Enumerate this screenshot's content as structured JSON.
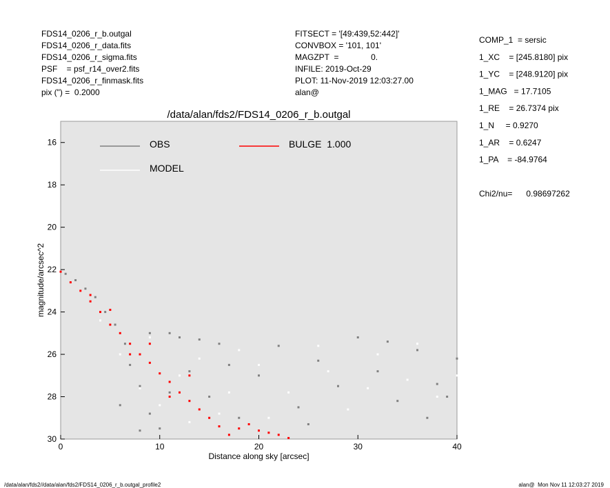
{
  "header": {
    "left": [
      "FDS14_0206_r_b.outgal",
      "FDS14_0206_r_data.fits",
      "FDS14_0206_r_sigma.fits",
      "PSF    = psf_r14_over2.fits",
      "FDS14_0206_r_finmask.fits",
      "pix (\") =  0.2000"
    ],
    "middle": [
      "FITSECT = '[49:439,52:442]'",
      "CONVBOX = '101, 101'",
      "MAGZPT  =              0.",
      "INFILE: 2019-Oct-29",
      "PLOT: 11-Nov-2019 12:03:27.00",
      "alan@"
    ],
    "right": [
      "COMP_1  = sersic",
      "1_XC    = [245.8180] pix",
      "1_YC    = [248.9120] pix",
      "1_MAG   = 17.7105",
      "1_RE    = 26.7374 pix",
      "1_N     = 0.9270",
      "1_AR    = 0.6247",
      "1_PA    = -84.9764",
      "Chi2/nu=      0.98697262"
    ]
  },
  "footer": {
    "left": "/data/alan/fds2//data/alan/fds2/FDS14_0206_r_b.outgal_profile2",
    "right": "alan@  Mon Nov 11 12:03:27 2019"
  },
  "chart_data": {
    "type": "scatter",
    "title": "/data/alan/fds2/FDS14_0206_r_b.outgal",
    "x_label": "Distance along sky [arcsec]",
    "y_label": "magnitude/arcsec^2",
    "xlim": [
      0,
      40
    ],
    "xticks": [
      0,
      10,
      20,
      30,
      40
    ],
    "ylim": [
      30,
      15
    ],
    "yticks": [
      16,
      18,
      20,
      22,
      24,
      26,
      28,
      30
    ],
    "background": "#e5e5e5",
    "series": [
      {
        "name": "OBS",
        "color": "#808080",
        "x": [
          0.5,
          1.5,
          2.5,
          3.5,
          4.5,
          5.5,
          6.5,
          7,
          8,
          9,
          10,
          11,
          12,
          13,
          14,
          15,
          16,
          17,
          18,
          20,
          22,
          24,
          26,
          28,
          30,
          32,
          34,
          36,
          38,
          40,
          6,
          8,
          9,
          11,
          25,
          33,
          37,
          39
        ],
        "values": [
          22.2,
          22.5,
          22.9,
          23.3,
          24.0,
          24.6,
          25.5,
          26.5,
          27.5,
          28.8,
          29.5,
          25.0,
          25.2,
          26.8,
          25.3,
          28.0,
          25.5,
          26.5,
          29.0,
          27.0,
          25.6,
          28.5,
          26.3,
          27.5,
          25.2,
          26.8,
          28.2,
          25.8,
          27.4,
          26.2,
          28.4,
          29.6,
          25.0,
          27.8,
          29.3,
          25.4,
          29.0,
          28.0
        ]
      },
      {
        "name": "MODEL",
        "color": "#ffffff",
        "x": [
          2,
          4,
          6,
          8,
          10,
          12,
          14,
          16,
          18,
          20,
          23,
          26,
          29,
          32,
          35,
          38,
          40,
          9,
          13,
          17,
          21,
          27,
          31,
          36
        ],
        "values": [
          23.0,
          24.4,
          26.0,
          27.6,
          28.4,
          27.0,
          26.2,
          28.8,
          25.8,
          26.5,
          27.8,
          25.6,
          28.6,
          26.0,
          27.2,
          28.0,
          27.0,
          25.2,
          29.2,
          27.8,
          29.0,
          26.8,
          27.6,
          25.5
        ]
      },
      {
        "name": "BULGE  1.000",
        "color": "#ff0000",
        "x": [
          0,
          1,
          2,
          3,
          4,
          5,
          6,
          7,
          8,
          9,
          10,
          11,
          12,
          13,
          14,
          15,
          16,
          17,
          18,
          19,
          20,
          21,
          22,
          23,
          5,
          7,
          9,
          11,
          13,
          3
        ],
        "values": [
          22.1,
          22.6,
          23.0,
          23.5,
          24.0,
          24.6,
          25.0,
          25.5,
          26.0,
          26.4,
          26.9,
          27.3,
          27.8,
          28.2,
          28.6,
          29.0,
          29.4,
          29.8,
          29.5,
          29.3,
          29.6,
          29.7,
          29.8,
          29.95,
          23.9,
          26.0,
          25.5,
          28.0,
          27.0,
          23.2
        ]
      }
    ]
  }
}
